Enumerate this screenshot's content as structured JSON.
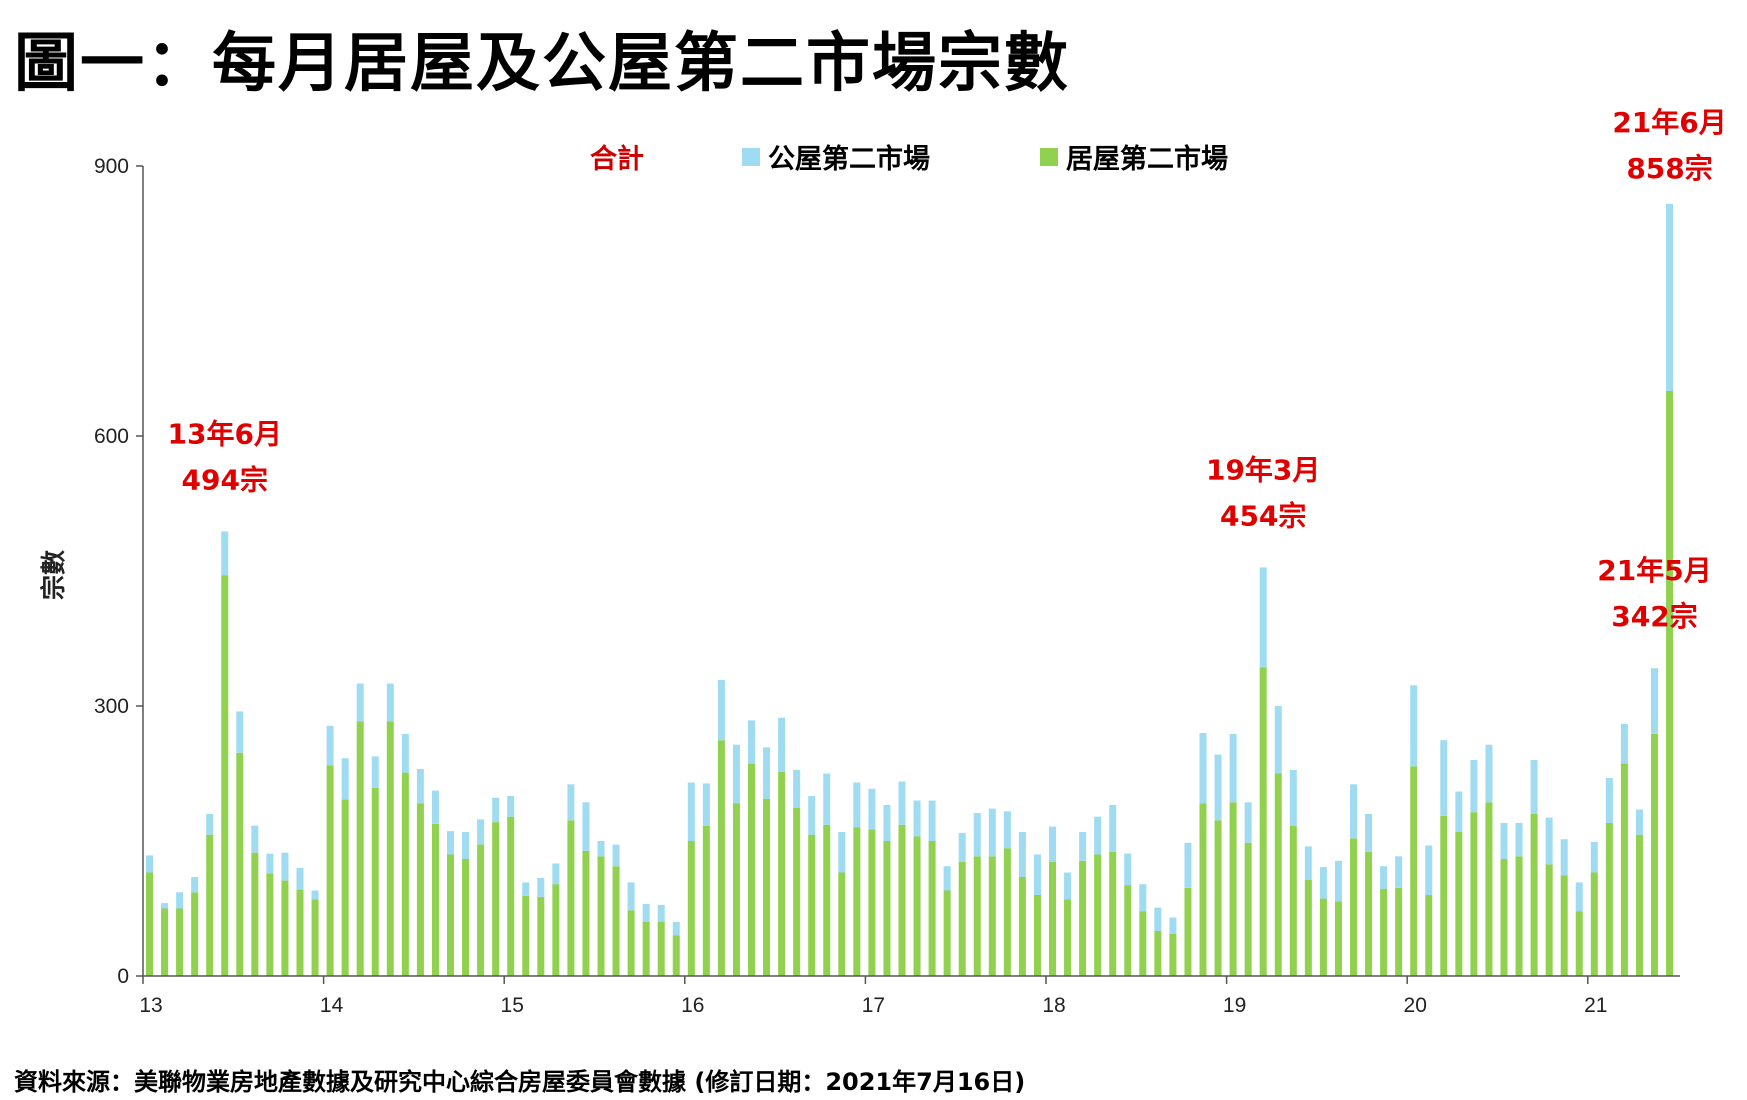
{
  "title": "圖一：每月居屋及公屋第二市場宗數",
  "source": "資料來源：美聯物業房地產數據及研究中心綜合房屋委員會數據 (修訂日期：2021年7月16日)",
  "colors": {
    "public": "#9fdcf2",
    "hos": "#92d050",
    "annotation": "#e00000"
  },
  "chart_data": {
    "type": "bar",
    "stacked": true,
    "ylabel": "宗數",
    "ylim": [
      0,
      900
    ],
    "yticks": [
      "0",
      "300",
      "600",
      "900"
    ],
    "year_ticks": [
      "13",
      "14",
      "15",
      "16",
      "17",
      "18",
      "19",
      "20",
      "21"
    ],
    "legend": [
      {
        "name": "合計",
        "swatch": false,
        "text_color": "#cc0000"
      },
      {
        "name": "公屋第二市場",
        "swatch": true,
        "color": "#9fdcf2",
        "text_color": "#000000"
      },
      {
        "name": "居屋第二市場",
        "swatch": true,
        "color": "#92d050",
        "text_color": "#000000"
      }
    ],
    "legend_placement": "top-center",
    "start_month": "2013-01",
    "series": [
      {
        "name": "居屋第二市場",
        "values": [
          115,
          75,
          75,
          93,
          157,
          445,
          248,
          137,
          114,
          106,
          96,
          85,
          234,
          196,
          283,
          209,
          283,
          226,
          192,
          169,
          135,
          130,
          146,
          171,
          177,
          89,
          88,
          102,
          173,
          139,
          133,
          122,
          73,
          60,
          60,
          45,
          150,
          167,
          262,
          192,
          236,
          197,
          227,
          187,
          157,
          168,
          115,
          165,
          163,
          150,
          168,
          155,
          150,
          95,
          127,
          133,
          133,
          142,
          110,
          90,
          127,
          85,
          128,
          135,
          138,
          101,
          72,
          50,
          47,
          98,
          192,
          173,
          193,
          148,
          343,
          225,
          167,
          107,
          86,
          83,
          153,
          138,
          97,
          98,
          233,
          90,
          178,
          160,
          182,
          193,
          130,
          133,
          180,
          124,
          112,
          72,
          115,
          170,
          236,
          157,
          269,
          650
        ]
      },
      {
        "name": "公屋第二市場",
        "values": [
          19,
          6,
          18,
          17,
          23,
          49,
          46,
          30,
          22,
          31,
          24,
          10,
          44,
          46,
          42,
          35,
          42,
          43,
          38,
          37,
          26,
          30,
          28,
          27,
          23,
          15,
          21,
          23,
          40,
          54,
          17,
          24,
          31,
          20,
          19,
          15,
          65,
          47,
          67,
          65,
          48,
          57,
          60,
          42,
          43,
          57,
          45,
          50,
          45,
          40,
          48,
          40,
          45,
          27,
          32,
          48,
          53,
          41,
          50,
          45,
          39,
          30,
          32,
          42,
          52,
          35,
          30,
          26,
          18,
          50,
          78,
          73,
          76,
          45,
          111,
          75,
          62,
          37,
          35,
          45,
          60,
          42,
          25,
          35,
          90,
          55,
          84,
          45,
          58,
          64,
          40,
          37,
          60,
          52,
          40,
          32,
          34,
          50,
          44,
          28,
          73,
          208
        ]
      }
    ],
    "totals": [
      134,
      81,
      93,
      110,
      180,
      494,
      294,
      167,
      136,
      137,
      120,
      95,
      278,
      242,
      325,
      244,
      325,
      269,
      230,
      206,
      161,
      160,
      174,
      198,
      200,
      104,
      109,
      125,
      213,
      193,
      150,
      146,
      104,
      80,
      79,
      60,
      215,
      214,
      329,
      257,
      284,
      254,
      287,
      229,
      200,
      225,
      160,
      215,
      208,
      190,
      216,
      195,
      195,
      122,
      159,
      181,
      186,
      183,
      160,
      135,
      166,
      115,
      160,
      177,
      190,
      136,
      102,
      76,
      65,
      148,
      270,
      246,
      269,
      193,
      454,
      300,
      229,
      144,
      121,
      128,
      213,
      180,
      122,
      133,
      323,
      145,
      262,
      205,
      240,
      257,
      170,
      170,
      240,
      176,
      152,
      104,
      149,
      220,
      280,
      185,
      342,
      858
    ],
    "annotations": [
      {
        "index": 5,
        "line1": "13年6月",
        "line2": "494宗"
      },
      {
        "index": 74,
        "line1": "19年3月",
        "line2": "454宗"
      },
      {
        "index": 100,
        "line1": "21年5月",
        "line2": "342宗"
      },
      {
        "index": 101,
        "line1": "21年6月",
        "line2": "858宗"
      }
    ]
  }
}
